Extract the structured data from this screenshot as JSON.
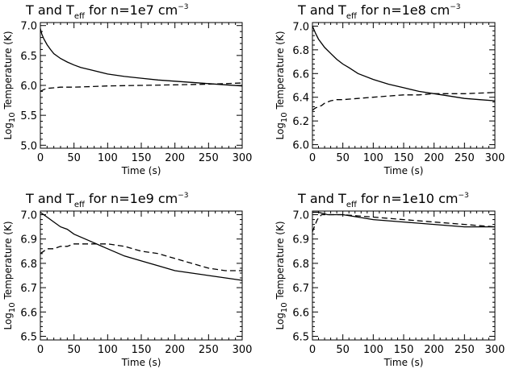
{
  "chart_data": [
    {
      "type": "line",
      "title_parts": [
        "T and T",
        "eff",
        " for n=1e7 cm",
        "−3"
      ],
      "xlabel": "Time (s)",
      "ylabel_parts": [
        "Log",
        "10",
        " Temperature (K)"
      ],
      "xlim": [
        0,
        300
      ],
      "ylim": [
        4.95,
        7.05
      ],
      "xticks": [
        0,
        50,
        100,
        150,
        200,
        250,
        300
      ],
      "yticks": [
        5.0,
        5.5,
        6.0,
        6.5,
        7.0
      ],
      "ytick_labels": [
        "5.0",
        "5.5",
        "6.0",
        "6.5",
        "7.0"
      ],
      "series": [
        {
          "style": "solid",
          "x": [
            0,
            2,
            5,
            10,
            15,
            20,
            30,
            40,
            50,
            60,
            75,
            100,
            125,
            150,
            175,
            200,
            225,
            250,
            275,
            300
          ],
          "y": [
            6.95,
            6.86,
            6.78,
            6.68,
            6.6,
            6.53,
            6.45,
            6.39,
            6.34,
            6.3,
            6.26,
            6.19,
            6.15,
            6.12,
            6.09,
            6.07,
            6.05,
            6.03,
            6.01,
            5.99
          ]
        },
        {
          "style": "dashed",
          "x": [
            0,
            5,
            10,
            20,
            30,
            50,
            75,
            100,
            150,
            200,
            250,
            300
          ],
          "y": [
            5.9,
            5.93,
            5.95,
            5.96,
            5.97,
            5.97,
            5.98,
            5.99,
            6.0,
            6.01,
            6.02,
            6.04
          ]
        }
      ]
    },
    {
      "type": "line",
      "title_parts": [
        "T and T",
        "eff",
        " for n=1e8 cm",
        "−3"
      ],
      "xlabel": "Time (s)",
      "ylabel_parts": [
        "Log",
        "10",
        " Temperature (K)"
      ],
      "xlim": [
        0,
        300
      ],
      "ylim": [
        5.97,
        7.03
      ],
      "xticks": [
        0,
        50,
        100,
        150,
        200,
        250,
        300
      ],
      "yticks": [
        6.0,
        6.2,
        6.4,
        6.6,
        6.8,
        7.0
      ],
      "ytick_labels": [
        "6.0",
        "6.2",
        "6.4",
        "6.6",
        "6.8",
        "7.0"
      ],
      "series": [
        {
          "style": "solid",
          "x": [
            0,
            5,
            10,
            20,
            30,
            40,
            50,
            60,
            75,
            100,
            125,
            150,
            175,
            200,
            225,
            250,
            275,
            300
          ],
          "y": [
            7.0,
            6.94,
            6.89,
            6.82,
            6.77,
            6.72,
            6.68,
            6.65,
            6.6,
            6.55,
            6.51,
            6.48,
            6.45,
            6.43,
            6.41,
            6.39,
            6.38,
            6.37
          ]
        },
        {
          "style": "dashed",
          "x": [
            0,
            5,
            10,
            15,
            20,
            30,
            40,
            50,
            75,
            100,
            125,
            150,
            175,
            200,
            250,
            300
          ],
          "y": [
            6.29,
            6.31,
            6.32,
            6.33,
            6.35,
            6.37,
            6.38,
            6.38,
            6.39,
            6.4,
            6.41,
            6.42,
            6.42,
            6.43,
            6.43,
            6.44
          ]
        }
      ]
    },
    {
      "type": "line",
      "title_parts": [
        "T and T",
        "eff",
        " for n=1e9 cm",
        "−3"
      ],
      "xlabel": "Time (s)",
      "ylabel_parts": [
        "Log",
        "10",
        " Temperature (K)"
      ],
      "xlim": [
        0,
        300
      ],
      "ylim": [
        6.485,
        7.015
      ],
      "xticks": [
        0,
        50,
        100,
        150,
        200,
        250,
        300
      ],
      "yticks": [
        6.5,
        6.6,
        6.7,
        6.8,
        6.9,
        7.0
      ],
      "ytick_labels": [
        "6.5",
        "6.6",
        "6.7",
        "6.8",
        "6.9",
        "7.0"
      ],
      "series": [
        {
          "style": "solid",
          "x": [
            0,
            10,
            20,
            30,
            40,
            50,
            75,
            100,
            125,
            150,
            175,
            200,
            225,
            250,
            275,
            300
          ],
          "y": [
            7.01,
            6.99,
            6.97,
            6.95,
            6.94,
            6.92,
            6.89,
            6.86,
            6.83,
            6.81,
            6.79,
            6.77,
            6.76,
            6.75,
            6.74,
            6.73
          ]
        },
        {
          "style": "dashed",
          "x": [
            0,
            5,
            10,
            20,
            30,
            40,
            50,
            60,
            75,
            100,
            125,
            150,
            175,
            200,
            225,
            250,
            275,
            300
          ],
          "y": [
            6.84,
            6.85,
            6.86,
            6.86,
            6.87,
            6.87,
            6.88,
            6.88,
            6.88,
            6.88,
            6.87,
            6.85,
            6.84,
            6.82,
            6.8,
            6.78,
            6.77,
            6.77
          ]
        }
      ]
    },
    {
      "type": "line",
      "title_parts": [
        "T and T",
        "eff",
        " for n=1e10 cm",
        "−3"
      ],
      "xlabel": "Time (s)",
      "ylabel_parts": [
        "Log",
        "10",
        " Temperature (K)"
      ],
      "xlim": [
        0,
        300
      ],
      "ylim": [
        6.485,
        7.015
      ],
      "xticks": [
        0,
        50,
        100,
        150,
        200,
        250,
        300
      ],
      "yticks": [
        6.5,
        6.6,
        6.7,
        6.8,
        6.9,
        7.0
      ],
      "ytick_labels": [
        "6.5",
        "6.6",
        "6.7",
        "6.8",
        "6.9",
        "7.0"
      ],
      "series": [
        {
          "style": "solid",
          "x": [
            0,
            10,
            25,
            50,
            75,
            100,
            150,
            200,
            250,
            300
          ],
          "y": [
            7.01,
            7.01,
            7.0,
            7.0,
            6.99,
            6.98,
            6.97,
            6.96,
            6.95,
            6.95
          ]
        },
        {
          "style": "dashed",
          "x": [
            0,
            3,
            8,
            15,
            20,
            30,
            50,
            100,
            150,
            200,
            250,
            300
          ],
          "y": [
            6.93,
            6.95,
            6.98,
            7.0,
            7.0,
            7.0,
            7.0,
            6.99,
            6.98,
            6.97,
            6.96,
            6.95
          ]
        }
      ]
    }
  ]
}
